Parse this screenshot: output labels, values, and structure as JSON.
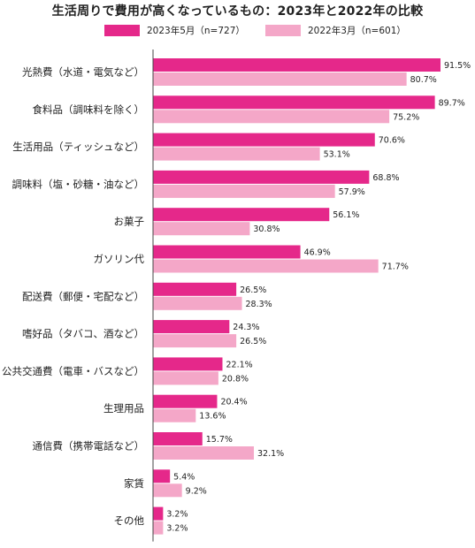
{
  "chart_data": {
    "type": "bar",
    "orientation": "horizontal",
    "title": "生活周りで費用が高くなっているもの：2023年と2022年の比較",
    "categories": [
      "光熱費（水道・電気など）",
      "食料品（調味料を除く）",
      "生活用品（ティッシュなど）",
      "調味料（塩・砂糖・油など）",
      "お菓子",
      "ガソリン代",
      "配送費（郵便・宅配など）",
      "嗜好品（タバコ、酒など）",
      "公共交通費（電車・バスなど）",
      "生理用品",
      "通信費（携帯電話など）",
      "家賃",
      "その他"
    ],
    "series": [
      {
        "name": "2023年5月（n=727）",
        "color": "#e5288a",
        "values": [
          91.5,
          89.7,
          70.6,
          68.8,
          56.1,
          46.9,
          26.5,
          24.3,
          22.1,
          20.4,
          15.7,
          5.4,
          3.2
        ],
        "labels": [
          "91.5%",
          "89.7%",
          "70.6%",
          "68.8%",
          "56.1%",
          "46.9%",
          "26.5%",
          "24.3%",
          "22.1%",
          "20.4%",
          "15.7%",
          "5.4%",
          "3.2%"
        ]
      },
      {
        "name": "2022年3月（n=601）",
        "color": "#f4a7c8",
        "values": [
          80.7,
          75.2,
          53.1,
          57.9,
          30.8,
          71.7,
          28.3,
          26.5,
          20.8,
          13.6,
          32.1,
          9.2,
          3.2
        ],
        "labels": [
          "80.7%",
          "75.2%",
          "53.1%",
          "57.9%",
          "30.8%",
          "71.7%",
          "28.3%",
          "26.5%",
          "20.8%",
          "13.6%",
          "32.1%",
          "9.2%",
          "3.2%"
        ]
      }
    ],
    "xlim": [
      0,
      100
    ],
    "grid": false,
    "legend_position": "top"
  }
}
